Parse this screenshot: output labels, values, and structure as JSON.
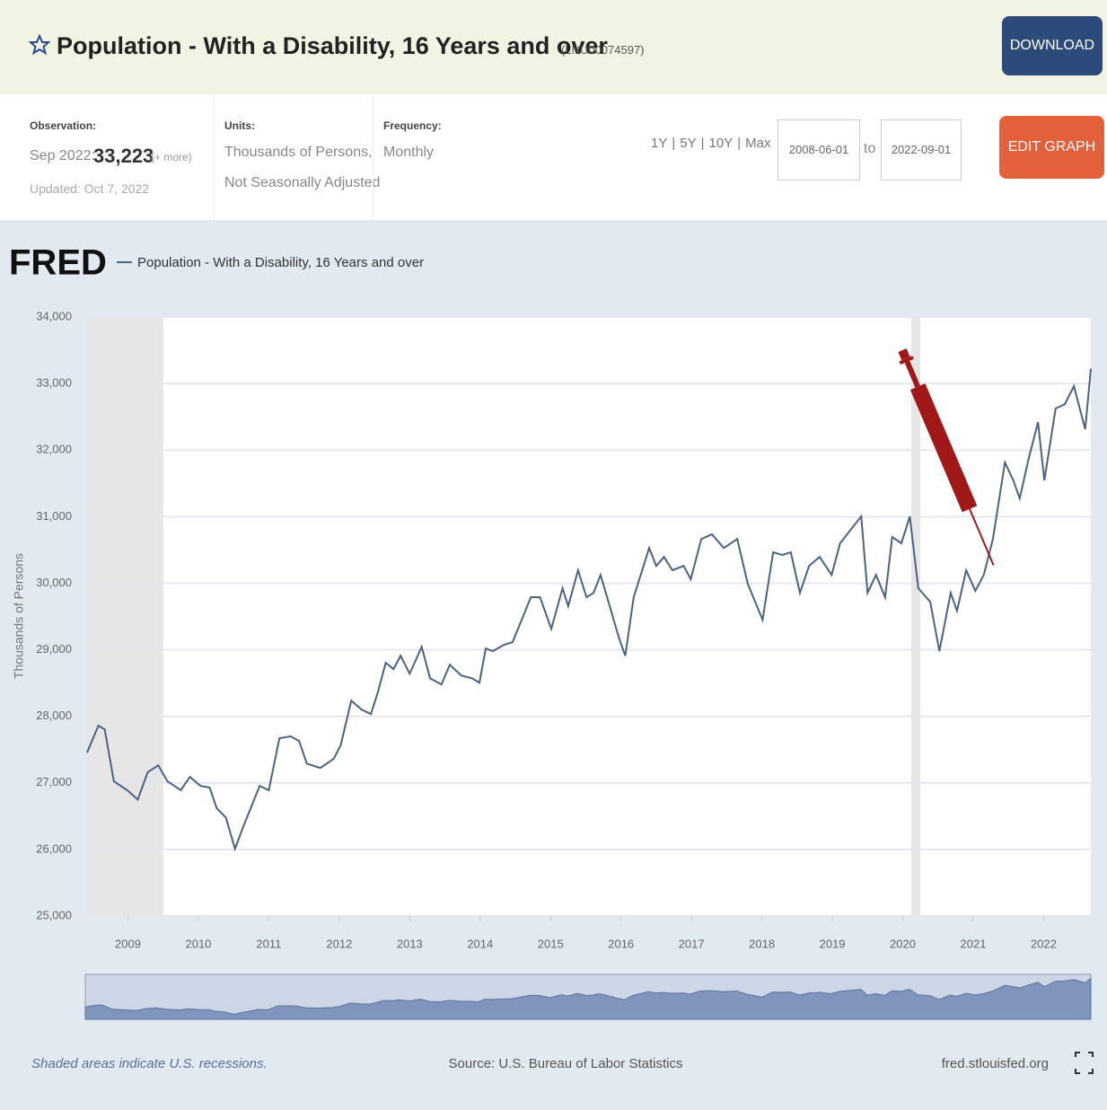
{
  "header": {
    "title": "Population - With a Disability, 16 Years and over",
    "series_id": "(LNU00074597)",
    "download": "DOWNLOAD"
  },
  "info": {
    "observation_label": "Observation:",
    "observation_date": "Sep 2022:",
    "observation_value": "33,223",
    "more": "(+ more)",
    "updated": "Updated: Oct 7, 2022",
    "units_label": "Units:",
    "units_line1": "Thousands of Persons,",
    "units_line2": "Not Seasonally Adjusted",
    "frequency_label": "Frequency:",
    "frequency": "Monthly",
    "ranges": [
      "1Y",
      "5Y",
      "10Y",
      "Max"
    ],
    "start_date": "2008-06-01",
    "to": "to",
    "end_date": "2022-09-01",
    "edit_graph": "EDIT GRAPH"
  },
  "chart_data": {
    "type": "line",
    "logo": "FRED",
    "y_label": "Thousands of Persons",
    "x": [
      2008.42,
      2008.58,
      2008.67,
      2008.8,
      2008.99,
      2009.14,
      2009.28,
      2009.43,
      2009.56,
      2009.75,
      2009.88,
      2010.03,
      2010.16,
      2010.26,
      2010.39,
      2010.52,
      2010.64,
      2010.87,
      2011.0,
      2011.15,
      2011.31,
      2011.43,
      2011.54,
      2011.73,
      2011.92,
      2012.02,
      2012.17,
      2012.32,
      2012.45,
      2012.55,
      2012.66,
      2012.77,
      2012.87,
      2013.0,
      2013.17,
      2013.29,
      2013.45,
      2013.57,
      2013.73,
      2013.89,
      2013.99,
      2014.08,
      2014.18,
      2014.34,
      2014.46,
      2014.59,
      2014.72,
      2014.85,
      2015.01,
      2015.17,
      2015.25,
      2015.39,
      2015.51,
      2015.61,
      2015.71,
      2015.84,
      2015.97,
      2016.06,
      2016.18,
      2016.4,
      2016.5,
      2016.61,
      2016.73,
      2016.89,
      2016.99,
      2017.14,
      2017.29,
      2017.46,
      2017.65,
      2017.8,
      2018.01,
      2018.16,
      2018.29,
      2018.41,
      2018.54,
      2018.67,
      2018.82,
      2018.99,
      2019.11,
      2019.28,
      2019.41,
      2019.5,
      2019.62,
      2019.75,
      2019.85,
      2019.98,
      2020.1,
      2020.22,
      2020.39,
      2020.52,
      2020.68,
      2020.77,
      2020.9,
      2021.03,
      2021.15,
      2021.28,
      2021.45,
      2021.57,
      2021.66,
      2021.79,
      2021.92,
      2022.01,
      2022.17,
      2022.3,
      2022.43,
      2022.59,
      2022.67
    ],
    "series": [
      {
        "name": "Population - With a Disability, 16 Years and over",
        "color": "#4b6382",
        "values": [
          27455,
          27860,
          27805,
          27025,
          26890,
          26750,
          27160,
          27265,
          27025,
          26890,
          27090,
          26955,
          26930,
          26620,
          26480,
          26010,
          26350,
          26955,
          26890,
          27670,
          27700,
          27630,
          27290,
          27225,
          27360,
          27565,
          28235,
          28100,
          28035,
          28370,
          28805,
          28710,
          28910,
          28640,
          29045,
          28570,
          28480,
          28775,
          28615,
          28570,
          28505,
          29020,
          28980,
          29075,
          29115,
          29450,
          29790,
          29790,
          29315,
          29925,
          29655,
          30195,
          29790,
          29855,
          30125,
          29655,
          29180,
          28910,
          29790,
          30530,
          30260,
          30395,
          30195,
          30260,
          30060,
          30665,
          30735,
          30530,
          30665,
          29990,
          29450,
          30465,
          30425,
          30465,
          29855,
          30260,
          30395,
          30125,
          30600,
          30830,
          31005,
          29855,
          30125,
          29790,
          30695,
          30600,
          31005,
          29925,
          29720,
          28980,
          29855,
          29585,
          30195,
          29885,
          30125,
          30665,
          31815,
          31545,
          31275,
          31885,
          32420,
          31545,
          32625,
          32690,
          32960,
          32315,
          33223
        ]
      }
    ],
    "recessions": [
      [
        2008.42,
        2009.5
      ],
      [
        2020.12,
        2020.25
      ]
    ],
    "xlim": [
      2008.42,
      2022.67
    ],
    "xticks": [
      2009,
      2010,
      2011,
      2012,
      2013,
      2014,
      2015,
      2016,
      2017,
      2018,
      2019,
      2020,
      2021,
      2022
    ],
    "ylim": [
      25000,
      34000
    ],
    "yticks": [
      {
        "value": 25000,
        "label": "25,000"
      },
      {
        "value": 26000,
        "label": "26,000"
      },
      {
        "value": 27000,
        "label": "27,000"
      },
      {
        "value": 28000,
        "label": "28,000"
      },
      {
        "value": 29000,
        "label": "29,000"
      },
      {
        "value": 30000,
        "label": "30,000"
      },
      {
        "value": 31000,
        "label": "31,000"
      },
      {
        "value": 32000,
        "label": "32,000"
      },
      {
        "value": 33000,
        "label": "33,000"
      },
      {
        "value": 34000,
        "label": "34,000"
      }
    ],
    "grid": true
  },
  "footer": {
    "recession_note": "Shaded areas indicate U.S. recessions.",
    "source": "Source: U.S. Bureau of Labor Statistics",
    "site": "fred.stlouisfed.org"
  }
}
